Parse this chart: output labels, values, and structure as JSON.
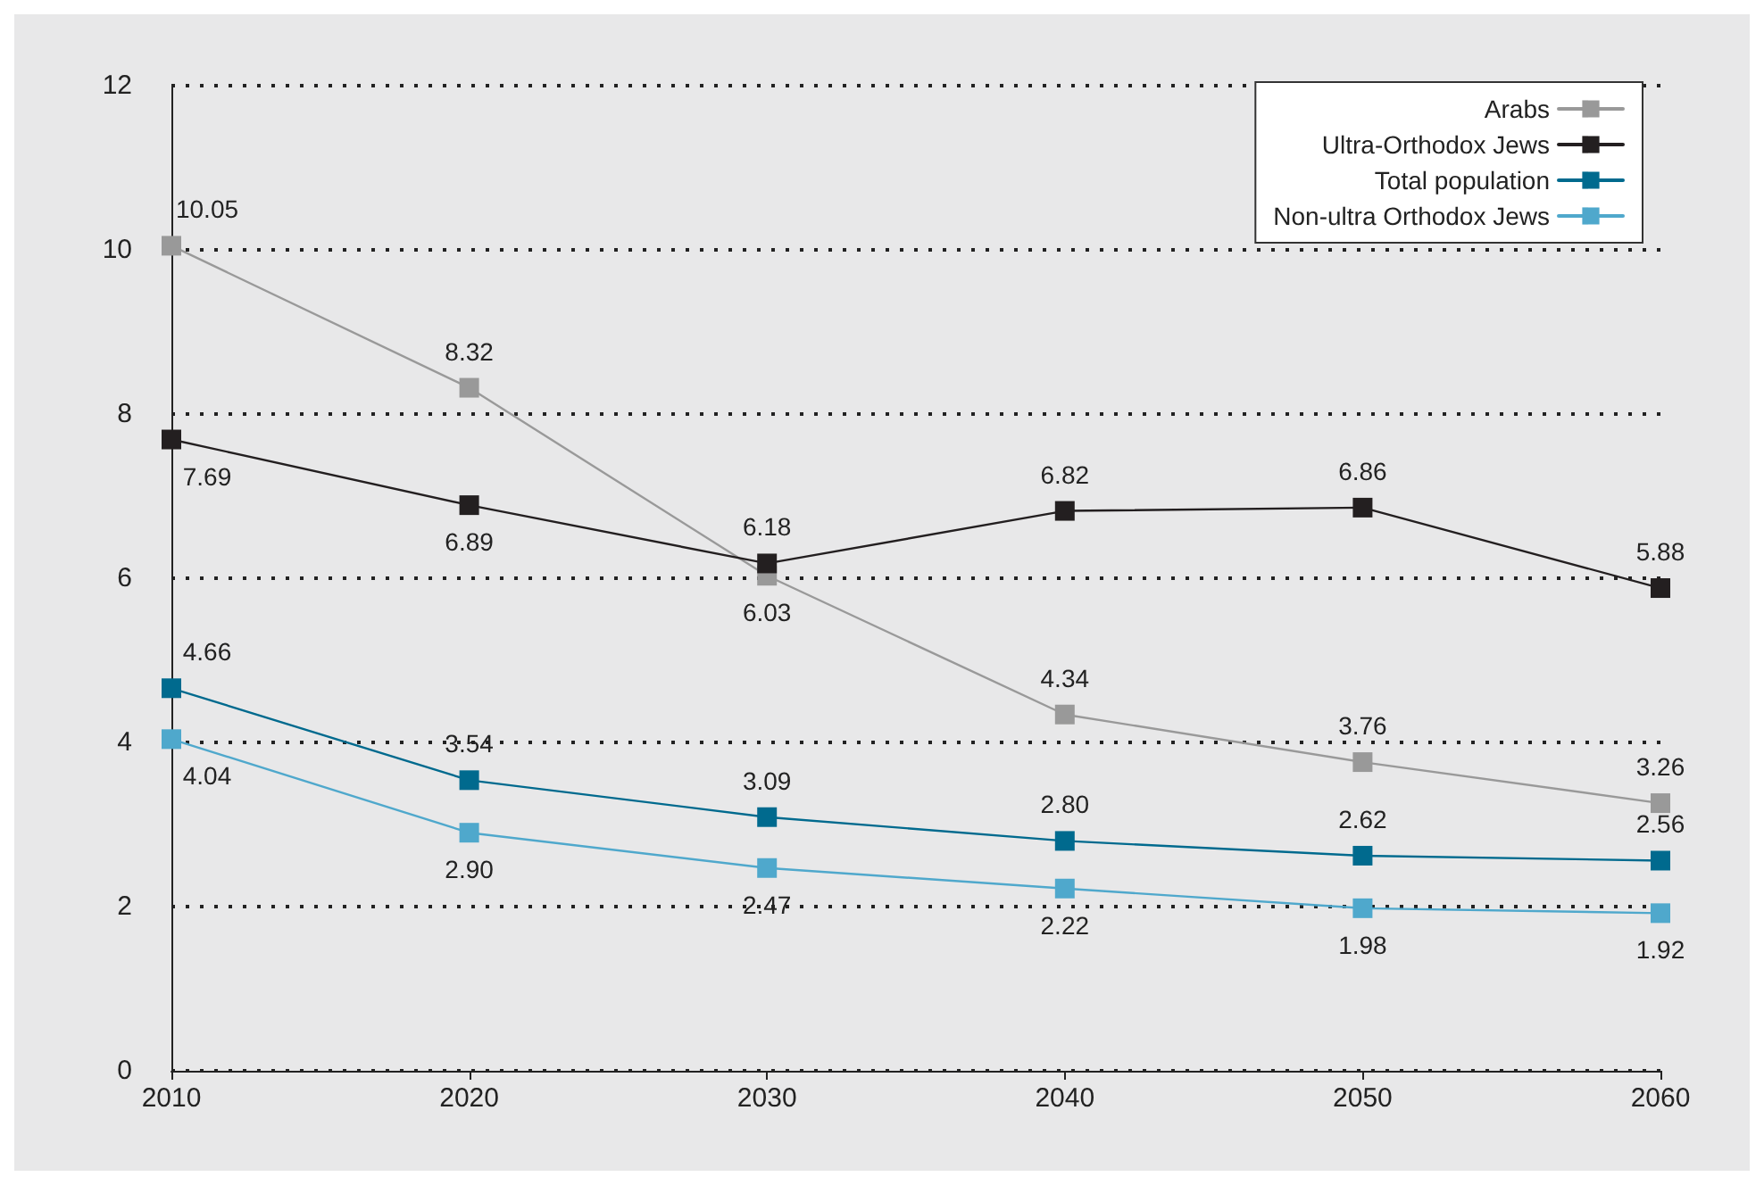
{
  "chart_data": {
    "type": "line",
    "x": [
      2010,
      2020,
      2030,
      2040,
      2050,
      2060
    ],
    "xlim": [
      2010,
      2060
    ],
    "xticks": [
      2010,
      2020,
      2030,
      2040,
      2050,
      2060
    ],
    "ylim": [
      0,
      12
    ],
    "yticks": [
      0,
      2,
      4,
      6,
      8,
      10,
      12
    ],
    "grid": "y",
    "legend": "top right",
    "marker": "square",
    "line_style": "solid",
    "series": [
      {
        "name": "Arabs",
        "color": "#999999",
        "values": [
          10.05,
          8.32,
          6.03,
          4.34,
          3.76,
          3.26
        ],
        "value_labels": [
          "10.05",
          "8.32",
          "6.03",
          "4.34",
          "3.76",
          "3.26"
        ]
      },
      {
        "name": "Ultra-Orthodox Jews",
        "color": "#231f20",
        "values": [
          7.69,
          6.89,
          6.18,
          6.82,
          6.86,
          5.88
        ],
        "value_labels": [
          "7.69",
          "6.89",
          "6.18",
          "6.82",
          "6.86",
          "5.88"
        ]
      },
      {
        "name": "Total population",
        "color": "#006a8e",
        "values": [
          4.66,
          3.54,
          3.09,
          2.8,
          2.62,
          2.56
        ],
        "value_labels": [
          "4.66",
          "3.54",
          "3.09",
          "2.80",
          "2.62",
          "2.56"
        ]
      },
      {
        "name": "Non-ultra Orthodox Jews",
        "color": "#4fa8cc",
        "values": [
          4.04,
          2.9,
          2.47,
          2.22,
          1.98,
          1.92
        ],
        "value_labels": [
          "4.04",
          "2.90",
          "2.47",
          "2.22",
          "1.98",
          "1.92"
        ]
      }
    ]
  }
}
